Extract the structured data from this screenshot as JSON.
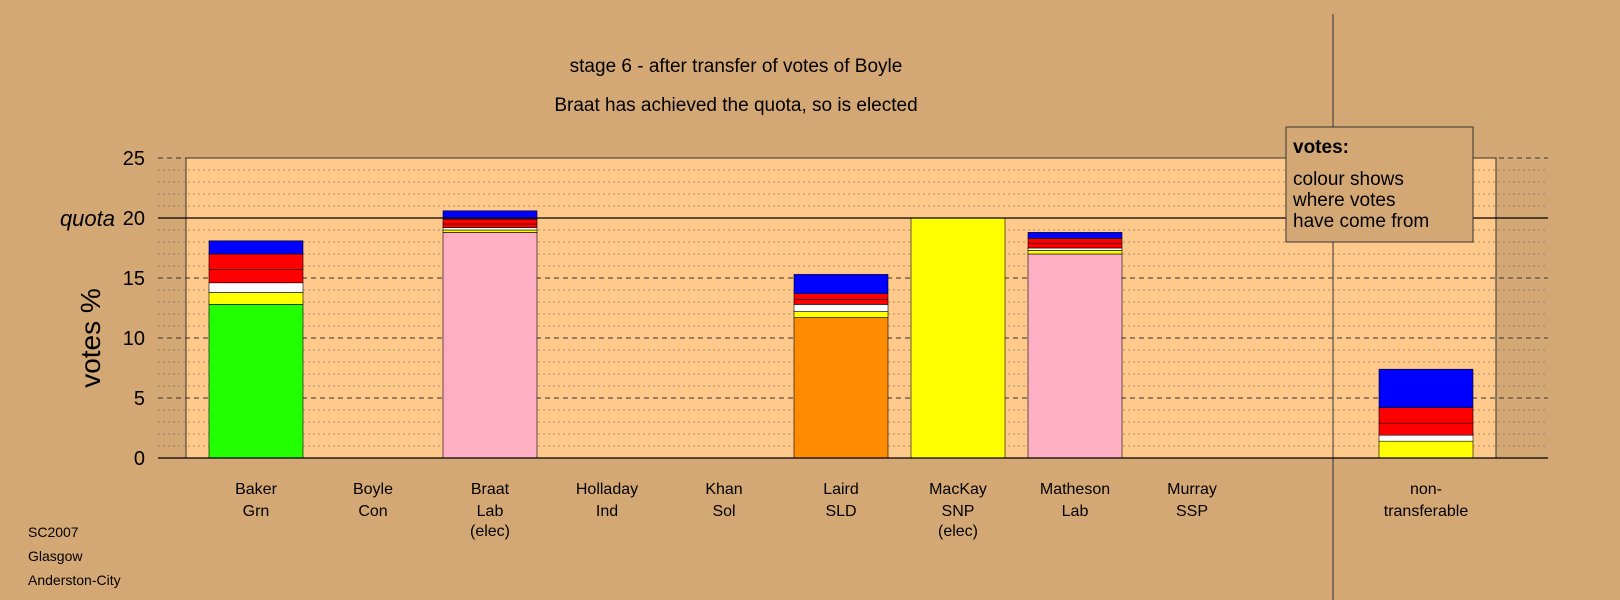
{
  "chart_data": {
    "type": "bar",
    "title": "stage 6 - after transfer of votes of Boyle",
    "subtitle": "Braat has achieved the quota, so is elected",
    "ylabel": "votes %",
    "ylim": [
      0,
      25
    ],
    "yticks": [
      0,
      5,
      10,
      15,
      20,
      25
    ],
    "quota_label": "quota",
    "quota": 20,
    "grid": true,
    "stacked": true,
    "candidates": [
      {
        "name": "Baker",
        "party": "Grn",
        "note": "",
        "segments": [
          {
            "color": "#22FF00",
            "value": 12.8
          },
          {
            "color": "#FFFF00",
            "value": 1.0
          },
          {
            "color": "#FFFFFF",
            "value": 0.8
          },
          {
            "color": "#FF0000",
            "value": 1.1
          },
          {
            "color": "#FF0000",
            "value": 1.3
          },
          {
            "color": "#0000FF",
            "value": 1.1
          }
        ]
      },
      {
        "name": "Boyle",
        "party": "Con",
        "note": "",
        "segments": []
      },
      {
        "name": "Braat",
        "party": "Lab",
        "note": "(elec)",
        "segments": [
          {
            "color": "#FFAFC4",
            "value": 18.8
          },
          {
            "color": "#FFFF00",
            "value": 0.2
          },
          {
            "color": "#FFFFFF",
            "value": 0.2
          },
          {
            "color": "#FF0000",
            "value": 0.3
          },
          {
            "color": "#FF0000",
            "value": 0.4
          },
          {
            "color": "#0000FF",
            "value": 0.7
          }
        ]
      },
      {
        "name": "Holladay",
        "party": "Ind",
        "note": "",
        "segments": []
      },
      {
        "name": "Khan",
        "party": "Sol",
        "note": "",
        "segments": []
      },
      {
        "name": "Laird",
        "party": "SLD",
        "note": "",
        "segments": [
          {
            "color": "#FF8C00",
            "value": 11.7
          },
          {
            "color": "#FFFF00",
            "value": 0.5
          },
          {
            "color": "#FFFFFF",
            "value": 0.6
          },
          {
            "color": "#FF0000",
            "value": 0.4
          },
          {
            "color": "#FF0000",
            "value": 0.5
          },
          {
            "color": "#0000FF",
            "value": 1.6
          }
        ]
      },
      {
        "name": "MacKay",
        "party": "SNP",
        "note": "(elec)",
        "segments": [
          {
            "color": "#FFFF00",
            "value": 20.0
          }
        ]
      },
      {
        "name": "Matheson",
        "party": "Lab",
        "note": "",
        "segments": [
          {
            "color": "#FFAFC4",
            "value": 17.0
          },
          {
            "color": "#FFFF00",
            "value": 0.3
          },
          {
            "color": "#FFFFFF",
            "value": 0.2
          },
          {
            "color": "#FF0000",
            "value": 0.4
          },
          {
            "color": "#FF0000",
            "value": 0.4
          },
          {
            "color": "#0000FF",
            "value": 0.5
          }
        ]
      },
      {
        "name": "Murray",
        "party": "SSP",
        "note": "",
        "segments": []
      }
    ],
    "nontransferable": {
      "label_line1": "non-",
      "label_line2": "transferable",
      "segments": [
        {
          "color": "#FFFF00",
          "value": 1.4
        },
        {
          "color": "#FFFFFF",
          "value": 0.5
        },
        {
          "color": "#FF0000",
          "value": 1.0
        },
        {
          "color": "#FF0000",
          "value": 1.3
        },
        {
          "color": "#0000FF",
          "value": 3.2
        }
      ]
    },
    "legend": {
      "title": "votes:",
      "lines": [
        "colour shows",
        "where votes",
        "have come from"
      ],
      "placement": "top-right"
    }
  },
  "footer": {
    "election": "SC2007",
    "city": "Glasgow",
    "ward": "Anderston-City"
  }
}
